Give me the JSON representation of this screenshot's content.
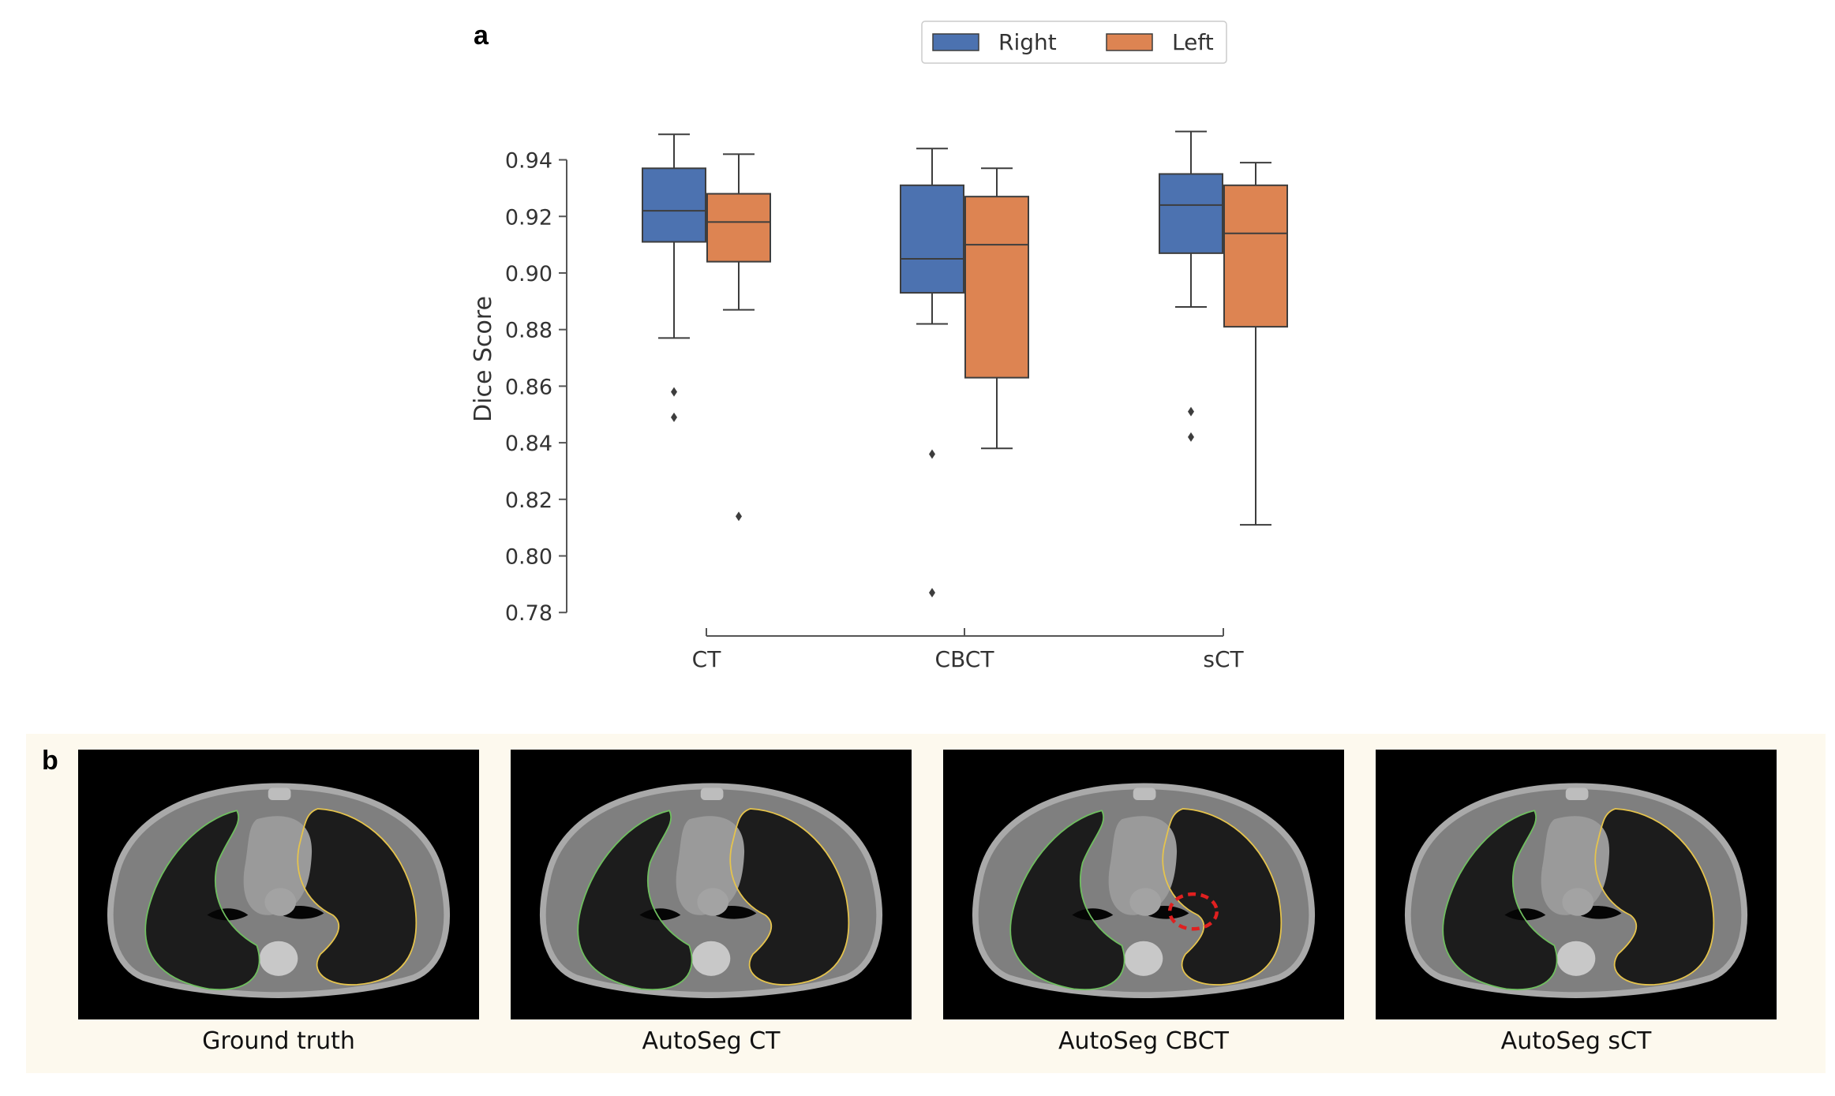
{
  "panels": {
    "a": "a",
    "b": "b"
  },
  "chart_data": {
    "type": "box",
    "categories": [
      "CT",
      "CBCT",
      "sCT"
    ],
    "ylabel": "Dice Score",
    "yticks": [
      "0.78",
      "0.80",
      "0.82",
      "0.84",
      "0.86",
      "0.88",
      "0.90",
      "0.92",
      "0.94"
    ],
    "ylim": [
      0.777,
      0.958
    ],
    "legend": {
      "placement": "top-center"
    },
    "series": [
      {
        "name": "Right",
        "color": "#4c72b0",
        "boxes": [
          {
            "whislo": 0.877,
            "q1": 0.911,
            "med": 0.922,
            "q3": 0.937,
            "whishi": 0.949,
            "fliers": [
              0.858,
              0.849
            ]
          },
          {
            "whislo": 0.882,
            "q1": 0.893,
            "med": 0.905,
            "q3": 0.931,
            "whishi": 0.944,
            "fliers": [
              0.836,
              0.787
            ]
          },
          {
            "whislo": 0.888,
            "q1": 0.907,
            "med": 0.924,
            "q3": 0.935,
            "whishi": 0.95,
            "fliers": [
              0.851,
              0.842
            ]
          }
        ]
      },
      {
        "name": "Left",
        "color": "#dd8452",
        "boxes": [
          {
            "whislo": 0.887,
            "q1": 0.904,
            "med": 0.918,
            "q3": 0.928,
            "whishi": 0.942,
            "fliers": [
              0.814
            ]
          },
          {
            "whislo": 0.838,
            "q1": 0.863,
            "med": 0.91,
            "q3": 0.927,
            "whishi": 0.937,
            "fliers": []
          },
          {
            "whislo": 0.811,
            "q1": 0.881,
            "med": 0.914,
            "q3": 0.931,
            "whishi": 0.939,
            "fliers": []
          }
        ]
      }
    ]
  },
  "scans": [
    {
      "caption": "Ground truth",
      "highlight": false
    },
    {
      "caption": "AutoSeg CT",
      "highlight": false
    },
    {
      "caption": "AutoSeg CBCT",
      "highlight": true
    },
    {
      "caption": "AutoSeg sCT",
      "highlight": false
    }
  ],
  "colors": {
    "right_contour": "#6fbf5f",
    "left_contour": "#e6c44c",
    "highlight": "#e02020"
  }
}
